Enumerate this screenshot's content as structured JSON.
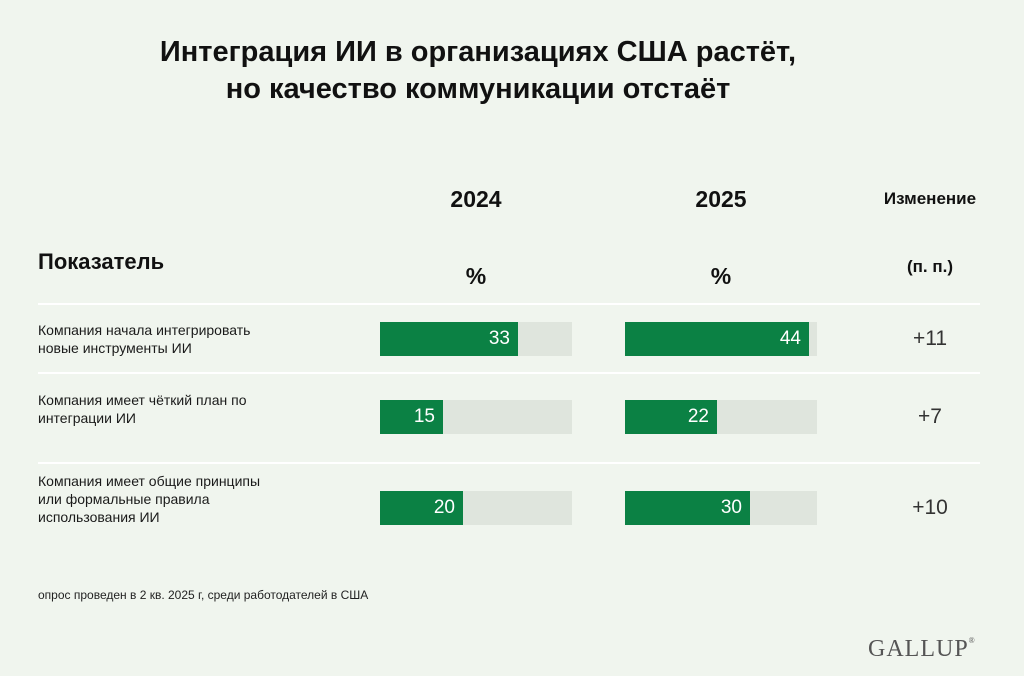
{
  "title": {
    "line1": "Интеграция ИИ в организациях США растёт,",
    "line2": "но качество коммуникации отстаёт"
  },
  "headers": {
    "metric": "Показатель",
    "year_2024": "2024",
    "year_2025": "2025",
    "unit_2024": "%",
    "unit_2025": "%",
    "change_line1": "Изменение",
    "change_line2": "(п. п.)"
  },
  "chart_data": {
    "type": "bar",
    "orientation": "horizontal",
    "categories": [
      "Компания начала интегрировать новые инструменты ИИ",
      "Компания имеет чёткий план по интеграции ИИ",
      "Компания имеет общие принципы или формальные правила использования ИИ"
    ],
    "series": [
      {
        "name": "2024",
        "values": [
          33,
          15,
          20
        ]
      },
      {
        "name": "2025",
        "values": [
          44,
          22,
          30
        ]
      }
    ],
    "change": [
      "+11",
      "+7",
      "+10"
    ],
    "xlim": [
      0,
      46
    ],
    "colors": {
      "bar": "#0b8144",
      "track": "#dfe5dd"
    }
  },
  "rows": [
    {
      "label_lines": [
        "Компания начала интегрировать",
        "новые инструменты ИИ"
      ]
    },
    {
      "label_lines": [
        "Компания имеет чёткий план по",
        "интеграции ИИ"
      ]
    },
    {
      "label_lines": [
        "Компания имеет общие принципы",
        "или формальные правила",
        "использования ИИ"
      ]
    }
  ],
  "footnote": "опрос проведен в 2 кв. 2025 г, среди работодателей в США",
  "logo": {
    "text": "GALLUP",
    "mark": "®"
  }
}
